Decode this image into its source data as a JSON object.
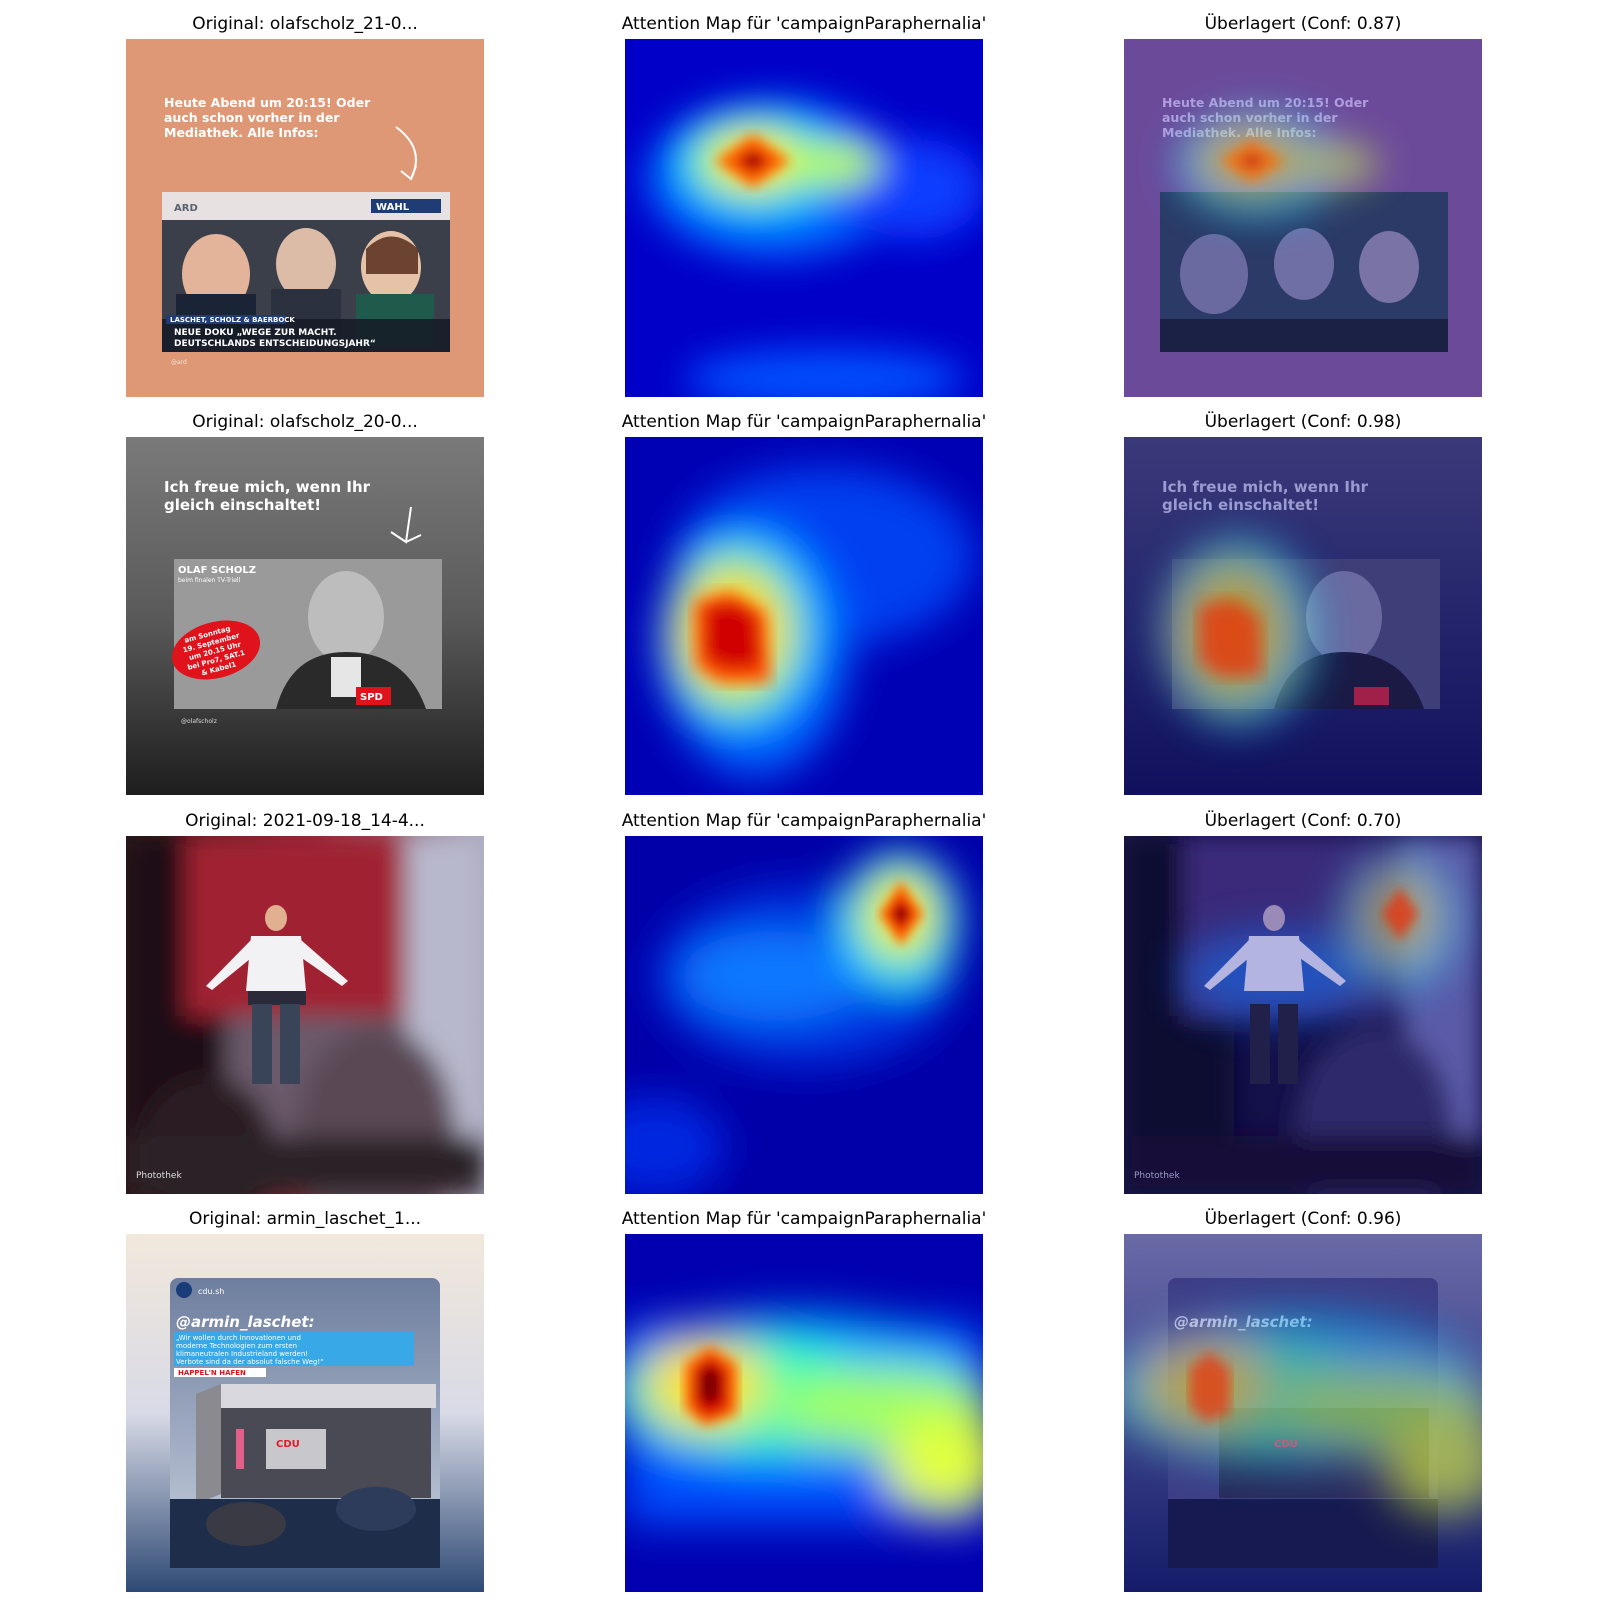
{
  "rows": [
    {
      "original_title": "Original: olafscholz_21-0...",
      "attention_title": "Attention Map für 'campaignParaphernalia'",
      "overlay_title": "Überlagert (Conf: 0.87)",
      "confidence": 0.87,
      "poster": {
        "headline": [
          "Heute Abend um 20:15! Oder",
          "auch schon vorher in der",
          "Mediathek. Alle Infos:"
        ],
        "brand_left": "ARD",
        "brand_right": "WAHL",
        "caption_top": "LASCHET, SCHOLZ & BAERBOCK",
        "caption_lines": [
          "NEUE DOKU „WEGE ZUR MACHT.",
          "DEUTSCHLANDS ENTSCHEIDUNGSJAHR“"
        ],
        "handle": "@ard"
      }
    },
    {
      "original_title": "Original: olafscholz_20-0...",
      "attention_title": "Attention Map für 'campaignParaphernalia'",
      "overlay_title": "Überlagert (Conf: 0.98)",
      "confidence": 0.98,
      "poster": {
        "headline": [
          "Ich freue mich, wenn Ihr",
          "gleich einschaltet!"
        ],
        "name": "OLAF SCHOLZ",
        "subtitle": "beim finalen TV-Triell",
        "badge": [
          "am Sonntag",
          "19. September",
          "um 20.15 Uhr",
          "bei Pro7, SAT.1",
          "& Kabel1"
        ],
        "party": "SPD",
        "handle": "@olafscholz"
      }
    },
    {
      "original_title": "Original: 2021-09-18_14-4...",
      "attention_title": "Attention Map für 'campaignParaphernalia'",
      "overlay_title": "Überlagert (Conf: 0.70)",
      "confidence": 0.7,
      "poster": {
        "credit": "Photothek"
      }
    },
    {
      "original_title": "Original: armin_laschet_1...",
      "attention_title": "Attention Map für 'campaignParaphernalia'",
      "overlay_title": "Überlagert (Conf: 0.96)",
      "confidence": 0.96,
      "poster": {
        "account": "cdu.sh",
        "mention": "@armin_laschet:",
        "quote": [
          "„Wir wollen durch Innovationen und",
          "moderne Technologien zum ersten",
          "klimaneutralen Industrieland werden!",
          "Verbote sind da der absolut falsche Weg!“"
        ],
        "tag": "HAPPEL'N HAFEN",
        "stage": "CDU"
      }
    }
  ]
}
